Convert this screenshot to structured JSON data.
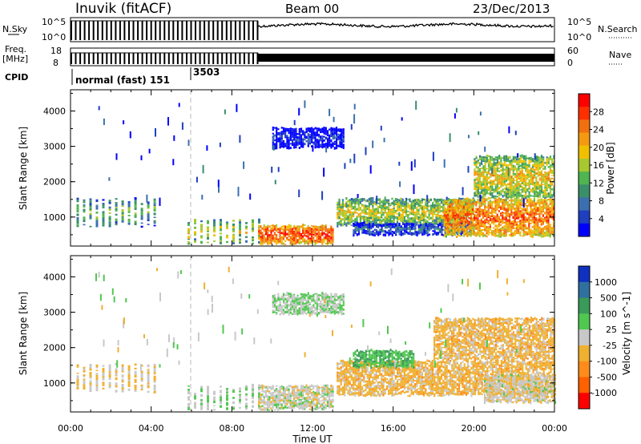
{
  "header": {
    "station": "Inuvik (fitACF)",
    "beam": "Beam 00",
    "date": "23/Dec/2013"
  },
  "param_panels": {
    "nsky_label": "N.Sky",
    "nsky_ticks_left": [
      "10^5",
      "10^0"
    ],
    "nsky_ticks_right": [
      "10^5",
      "10^0"
    ],
    "nsearch_label": "N.Search",
    "freq_label": "Freq.",
    "freq_unit": "[MHz]",
    "freq_ticks": [
      "18",
      "8"
    ],
    "nave_label": "Nave",
    "nave_ticks": [
      "60",
      "0"
    ],
    "cpid_label": "CPID",
    "cpid_modes": [
      "normal (fast) 151",
      "3503"
    ]
  },
  "axes": {
    "xlabel": "Time UT",
    "ylabel": "Slant Range [km]",
    "xticks": [
      "00:00",
      "04:00",
      "08:00",
      "12:00",
      "16:00",
      "20:00",
      "00:00"
    ],
    "yticks": [
      "1000",
      "2000",
      "3000",
      "4000"
    ],
    "power_colorbar_label": "Power [dB]",
    "power_ticks": [
      "28",
      "24",
      "20",
      "16",
      "12",
      "8",
      "4"
    ],
    "velocity_colorbar_label": "Velocity [m s^-1]",
    "velocity_ticks": [
      "1000",
      "500",
      "100",
      "25",
      "-25",
      "-100",
      "-500",
      "-1000"
    ]
  },
  "chart_data": [
    {
      "type": "heatmap",
      "name": "Power",
      "x_range_hours": [
        0,
        24
      ],
      "y_range_km": [
        180,
        4600
      ],
      "colorbar_range_db": [
        0,
        32
      ],
      "colors": [
        "#0000ff",
        "#1f3fbf",
        "#3c6fb0",
        "#3a8f6a",
        "#50b450",
        "#a8c830",
        "#f0c000",
        "#f59a10",
        "#f07010",
        "#ff3000",
        "#ff0000"
      ],
      "echo_regions": [
        {
          "t_start": 0.3,
          "t_end": 4.2,
          "range_min": 700,
          "range_max": 1500,
          "power": 14,
          "pulsed": true
        },
        {
          "t_start": 5.8,
          "t_end": 9.3,
          "range_min": 200,
          "range_max": 900,
          "power": 18,
          "pulsed": true
        },
        {
          "t_start": 9.3,
          "t_end": 13.0,
          "range_min": 200,
          "range_max": 750,
          "power": 28
        },
        {
          "t_start": 13.2,
          "t_end": 20.0,
          "range_min": 700,
          "range_max": 1500,
          "power": 18
        },
        {
          "t_start": 14.0,
          "t_end": 20.0,
          "range_min": 450,
          "range_max": 800,
          "power": 8
        },
        {
          "t_start": 18.5,
          "t_end": 24.0,
          "range_min": 400,
          "range_max": 1500,
          "power": 26
        },
        {
          "t_start": 20.0,
          "t_end": 24.0,
          "range_min": 1500,
          "range_max": 2700,
          "power": 20
        },
        {
          "t_start": 10.0,
          "t_end": 13.5,
          "range_min": 2900,
          "range_max": 3500,
          "power": 4
        }
      ]
    },
    {
      "type": "heatmap",
      "name": "Velocity",
      "x_range_hours": [
        0,
        24
      ],
      "y_range_km": [
        180,
        4600
      ],
      "colorbar_range_ms": [
        -1000,
        1000
      ],
      "colors": [
        "#ff0000",
        "#ff6000",
        "#ff8c1a",
        "#f0b030",
        "#c8c8c8",
        "#50c850",
        "#3a9a5a",
        "#2f70a0",
        "#1030c0"
      ],
      "echo_regions": [
        {
          "t_start": 0.3,
          "t_end": 4.2,
          "range_min": 700,
          "range_max": 1500,
          "velocity": -100,
          "pulsed": true
        },
        {
          "t_start": 5.8,
          "t_end": 9.3,
          "range_min": 200,
          "range_max": 900,
          "velocity": 100,
          "pulsed": true
        },
        {
          "t_start": 9.3,
          "t_end": 13.0,
          "range_min": 200,
          "range_max": 900,
          "velocity": 0
        },
        {
          "t_start": 13.2,
          "t_end": 24.0,
          "range_min": 600,
          "range_max": 1600,
          "velocity": -200
        },
        {
          "t_start": 14.0,
          "t_end": 17.0,
          "range_min": 1400,
          "range_max": 1900,
          "velocity": 300
        },
        {
          "t_start": 20.5,
          "t_end": 24.0,
          "range_min": 400,
          "range_max": 1200,
          "velocity": -40
        },
        {
          "t_start": 18.0,
          "t_end": 24.0,
          "range_min": 1600,
          "range_max": 2800,
          "velocity": -200
        },
        {
          "t_start": 10.0,
          "t_end": 13.5,
          "range_min": 2900,
          "range_max": 3500,
          "velocity": 100
        }
      ]
    }
  ]
}
